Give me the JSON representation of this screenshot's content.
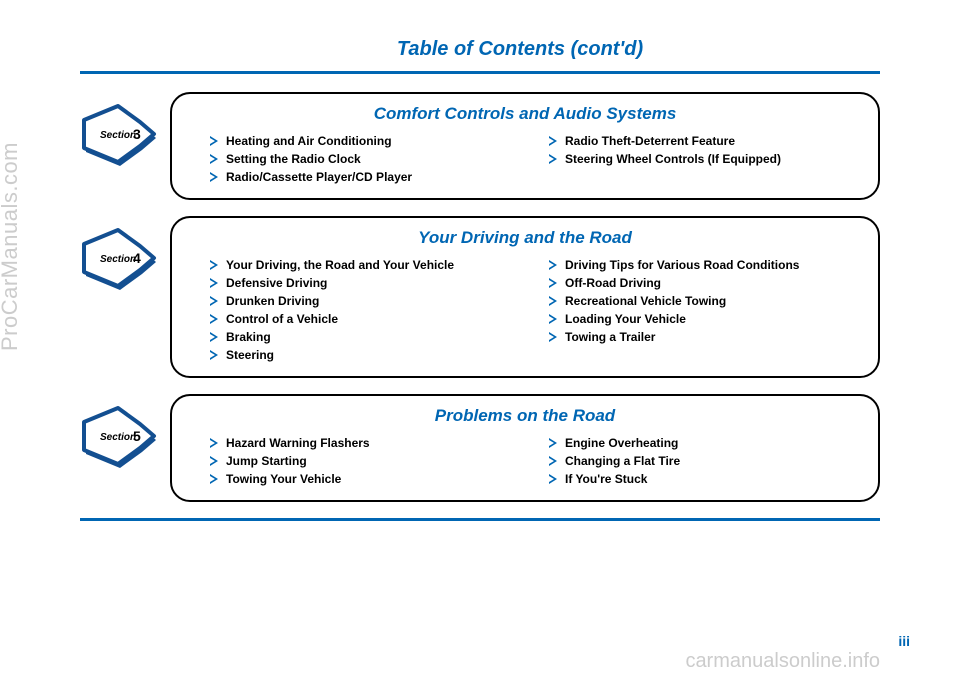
{
  "page_title": "Table of Contents (cont'd)",
  "watermark_left": "ProCarManuals.com",
  "watermark_bottom": "carmanualsonline.info",
  "page_number": "iii",
  "colors": {
    "brand": "#0066b3",
    "text": "#000000",
    "border": "#000000",
    "watermark": "#cccccc",
    "bg": "#ffffff"
  },
  "sections": [
    {
      "number": "3",
      "badge_label": "Section",
      "title": "Comfort Controls and Audio Systems",
      "columns": [
        [
          "Heating and Air Conditioning",
          "Setting the Radio Clock",
          "Radio/Cassette Player/CD Player"
        ],
        [
          "Radio Theft-Deterrent Feature",
          "Steering Wheel Controls (If Equipped)"
        ]
      ]
    },
    {
      "number": "4",
      "badge_label": "Section",
      "title": "Your Driving and the Road",
      "columns": [
        [
          "Your Driving, the Road and Your Vehicle",
          "Defensive Driving",
          "Drunken Driving",
          "Control of a Vehicle",
          "Braking",
          "Steering"
        ],
        [
          "Driving Tips for Various Road Conditions",
          "Off-Road Driving",
          "Recreational Vehicle Towing",
          "Loading Your Vehicle",
          "Towing a Trailer"
        ]
      ]
    },
    {
      "number": "5",
      "badge_label": "Section",
      "title": "Problems on the Road",
      "columns": [
        [
          "Hazard Warning Flashers",
          "Jump Starting",
          "Towing Your Vehicle"
        ],
        [
          "Engine Overheating",
          "Changing a Flat Tire",
          "If You're Stuck"
        ]
      ]
    }
  ]
}
